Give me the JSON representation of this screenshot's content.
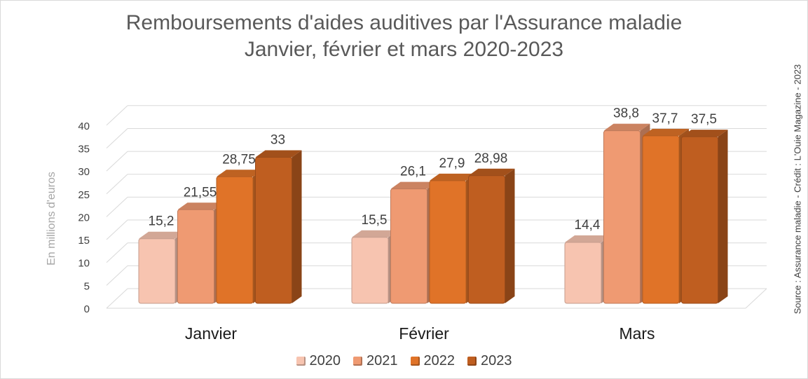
{
  "title_line1": "Remboursements d'aides auditives par l'Assurance maladie",
  "title_line2": "Janvier, février et mars 2020-2023",
  "credit": "Source : Assurance maladie - Crédit : L'Ouie Magazine - 2023",
  "colors": {
    "2020": "#f7c4b0",
    "2021": "#ef9a72",
    "2022": "#e07328",
    "2023": "#bf5e20",
    "grid": "#d9d9d9",
    "axis_text": "#404040",
    "ylabel_text": "#a6a6a6"
  },
  "chart_data": {
    "type": "bar",
    "variant": "3d-clustered-column",
    "title": "Remboursements d'aides auditives par l'Assurance maladie\nJanvier, février et mars 2020-2023",
    "categories": [
      "Janvier",
      "Février",
      "Mars"
    ],
    "series": [
      {
        "name": "2020",
        "values": [
          15.2,
          15.5,
          14.4
        ],
        "labels": [
          "15,2",
          "15,5",
          "14,4"
        ]
      },
      {
        "name": "2021",
        "values": [
          21.55,
          26.1,
          38.8
        ],
        "labels": [
          "21,55",
          "26,1",
          "38,8"
        ]
      },
      {
        "name": "2022",
        "values": [
          28.75,
          27.9,
          37.7
        ],
        "labels": [
          "28,75",
          "27,9",
          "37,7"
        ]
      },
      {
        "name": "2023",
        "values": [
          33,
          28.98,
          37.5
        ],
        "labels": [
          "33",
          "28,98",
          "37,5"
        ]
      }
    ],
    "ylabel": "En millions d'euros",
    "xlabel": "",
    "ylim": [
      0,
      40
    ],
    "yticks": [
      "0",
      "5",
      "10",
      "15",
      "20",
      "25",
      "30",
      "35",
      "40"
    ],
    "grid": true,
    "legend": "bottom"
  }
}
